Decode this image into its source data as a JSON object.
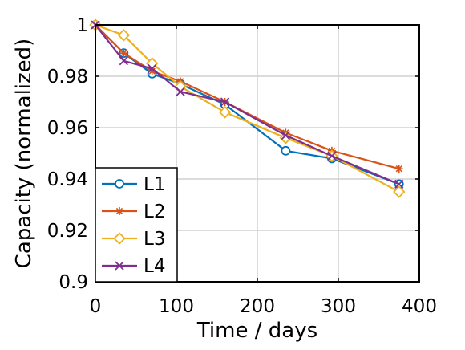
{
  "chart_data": {
    "type": "line",
    "xlabel": "Time / days",
    "ylabel": "Capacity (normalized)",
    "xlim": [
      0,
      400
    ],
    "ylim": [
      0.9,
      1.0
    ],
    "grid": true,
    "legend_position": "bottom-left",
    "x_ticks": [
      0,
      100,
      200,
      300,
      400
    ],
    "x_tick_labels": [
      "0",
      "100",
      "200",
      "300",
      "400"
    ],
    "y_ticks": [
      0.9,
      0.92,
      0.94,
      0.96,
      0.98,
      1.0
    ],
    "y_tick_labels": [
      "0.9",
      "0.92",
      "0.94",
      "0.96",
      "0.98",
      "1"
    ],
    "series": [
      {
        "name": "L1",
        "color": "#0072BD",
        "marker": "circle",
        "x": [
          0,
          35,
          70,
          105,
          160,
          235,
          292,
          375
        ],
        "y": [
          1.0,
          0.989,
          0.981,
          0.977,
          0.969,
          0.951,
          0.948,
          0.938
        ]
      },
      {
        "name": "L2",
        "color": "#D95319",
        "marker": "asterisk",
        "x": [
          0,
          35,
          70,
          105,
          160,
          235,
          292,
          375
        ],
        "y": [
          1.0,
          0.989,
          0.982,
          0.978,
          0.97,
          0.958,
          0.951,
          0.944
        ]
      },
      {
        "name": "L3",
        "color": "#EDB120",
        "marker": "diamond",
        "x": [
          0,
          35,
          70,
          105,
          160,
          235,
          292,
          375
        ],
        "y": [
          1.0,
          0.996,
          0.985,
          0.976,
          0.966,
          0.956,
          0.949,
          0.935
        ]
      },
      {
        "name": "L4",
        "color": "#7E2F8E",
        "marker": "x",
        "x": [
          0,
          35,
          70,
          105,
          160,
          235,
          292,
          375
        ],
        "y": [
          1.0,
          0.986,
          0.983,
          0.974,
          0.97,
          0.957,
          0.949,
          0.938
        ]
      }
    ]
  }
}
